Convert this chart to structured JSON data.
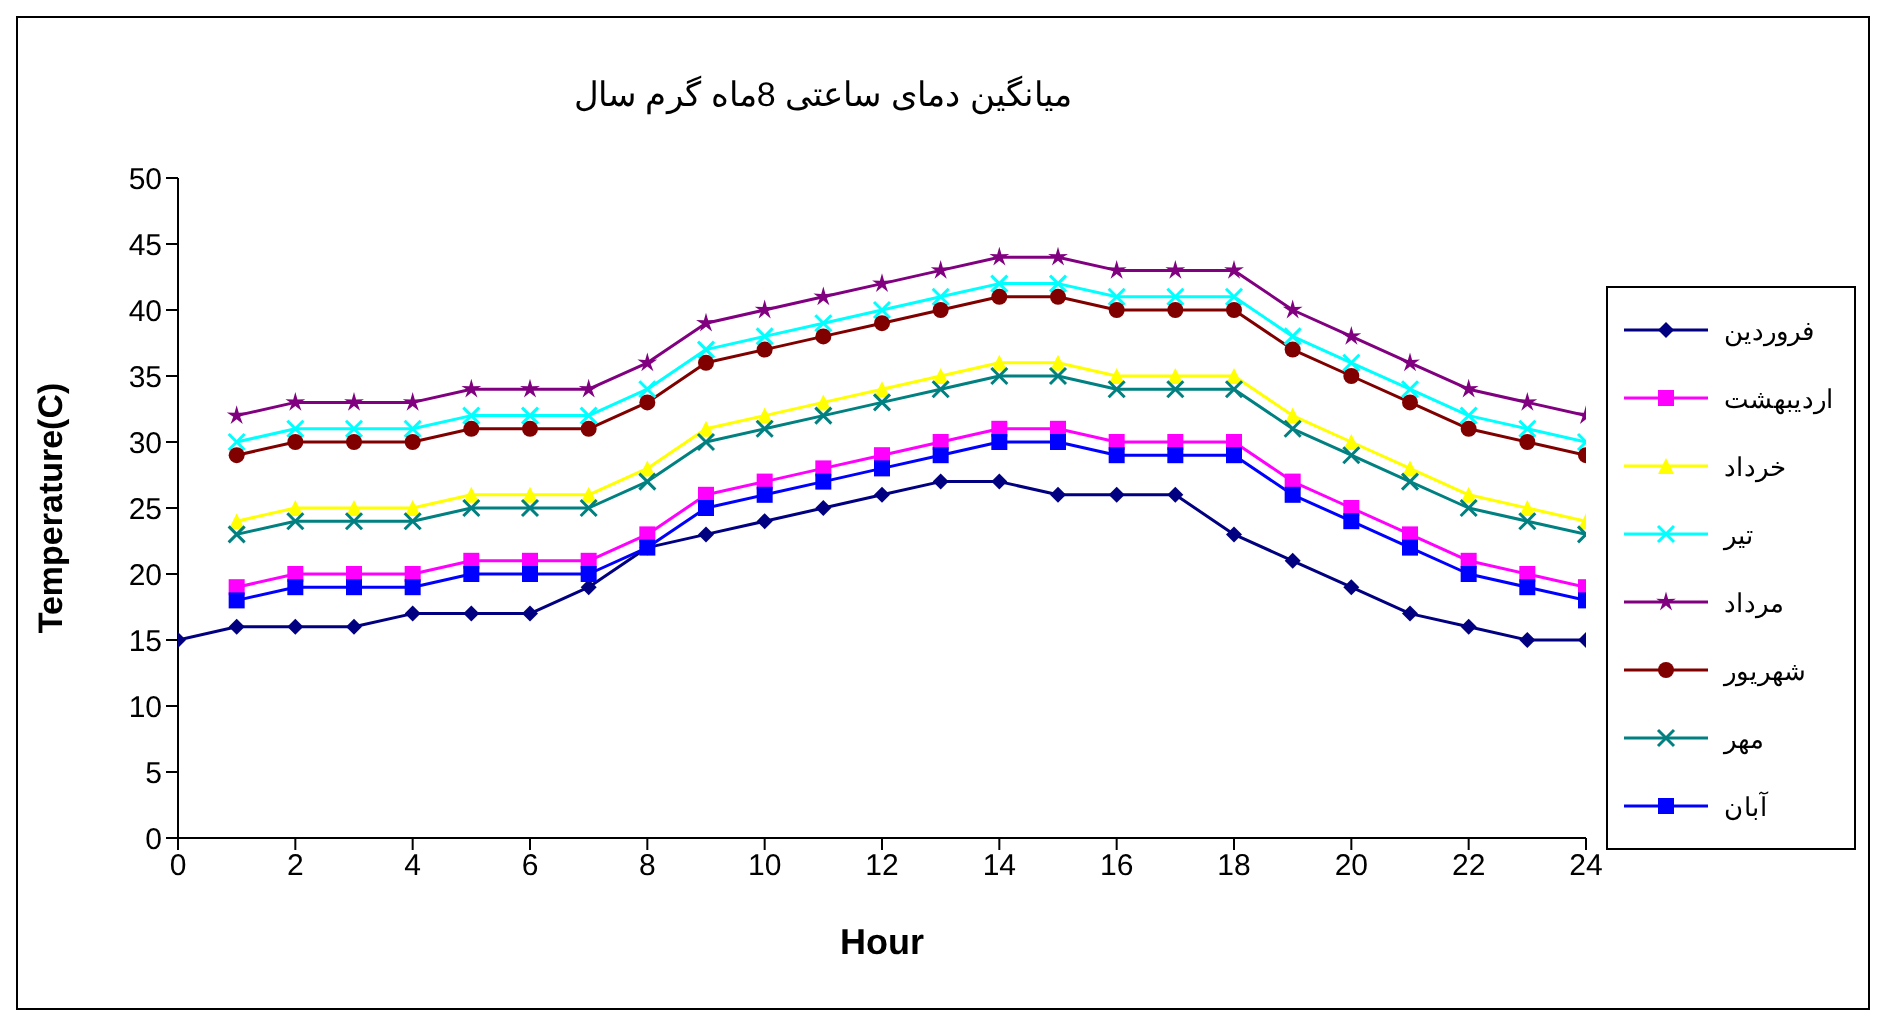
{
  "chart_data": {
    "type": "line",
    "title": "میانگین دمای ساعتی 8ماه گرم سال",
    "xlabel": "Hour",
    "ylabel": "Temperature(C)",
    "x": [
      0,
      1,
      2,
      3,
      4,
      5,
      6,
      7,
      8,
      9,
      10,
      11,
      12,
      13,
      14,
      15,
      16,
      17,
      18,
      19,
      20,
      21,
      22,
      23,
      24
    ],
    "xlim": [
      0,
      24
    ],
    "xticks": [
      0,
      2,
      4,
      6,
      8,
      10,
      12,
      14,
      16,
      18,
      20,
      22,
      24
    ],
    "ylim": [
      0,
      50
    ],
    "yticks": [
      0,
      5,
      10,
      15,
      20,
      25,
      30,
      35,
      40,
      45,
      50
    ],
    "grid": false,
    "legend": "right",
    "series": [
      {
        "name": "فروردین",
        "color": "#000080",
        "marker": "diamond",
        "values": [
          15,
          16,
          16,
          16,
          17,
          17,
          17,
          19,
          22,
          23,
          24,
          25,
          26,
          27,
          27,
          26,
          26,
          26,
          23,
          21,
          19,
          17,
          16,
          15,
          15
        ]
      },
      {
        "name": "اردیبهشت",
        "color": "#ff00ff",
        "marker": "square",
        "values": [
          null,
          19,
          20,
          20,
          20,
          21,
          21,
          21,
          23,
          26,
          27,
          28,
          29,
          30,
          31,
          31,
          30,
          30,
          30,
          27,
          25,
          23,
          21,
          20,
          19
        ]
      },
      {
        "name": "خرداد",
        "color": "#ffff00",
        "marker": "triangle",
        "values": [
          null,
          24,
          25,
          25,
          25,
          26,
          26,
          26,
          28,
          31,
          32,
          33,
          34,
          35,
          36,
          36,
          35,
          35,
          35,
          32,
          30,
          28,
          26,
          25,
          24
        ]
      },
      {
        "name": "تیر",
        "color": "#00ffff",
        "marker": "cross",
        "values": [
          null,
          30,
          31,
          31,
          31,
          32,
          32,
          32,
          34,
          37,
          38,
          39,
          40,
          41,
          42,
          42,
          41,
          41,
          41,
          38,
          36,
          34,
          32,
          31,
          30
        ]
      },
      {
        "name": "مرداد",
        "color": "#800080",
        "marker": "star",
        "values": [
          null,
          32,
          33,
          33,
          33,
          34,
          34,
          34,
          36,
          39,
          40,
          41,
          42,
          43,
          44,
          44,
          43,
          43,
          43,
          40,
          38,
          36,
          34,
          33,
          32
        ]
      },
      {
        "name": "شهریور",
        "color": "#800000",
        "marker": "circle",
        "values": [
          null,
          29,
          30,
          30,
          30,
          31,
          31,
          31,
          33,
          36,
          37,
          38,
          39,
          40,
          41,
          41,
          40,
          40,
          40,
          37,
          35,
          33,
          31,
          30,
          29
        ]
      },
      {
        "name": "مهر",
        "color": "#008080",
        "marker": "cross",
        "values": [
          null,
          23,
          24,
          24,
          24,
          25,
          25,
          25,
          27,
          30,
          31,
          32,
          33,
          34,
          35,
          35,
          34,
          34,
          34,
          31,
          29,
          27,
          25,
          24,
          23
        ]
      },
      {
        "name": "آبان",
        "color": "#0000ff",
        "marker": "square",
        "values": [
          null,
          18,
          19,
          19,
          19,
          20,
          20,
          20,
          22,
          25,
          26,
          27,
          28,
          29,
          30,
          30,
          29,
          29,
          29,
          26,
          24,
          22,
          20,
          19,
          18
        ]
      }
    ]
  }
}
